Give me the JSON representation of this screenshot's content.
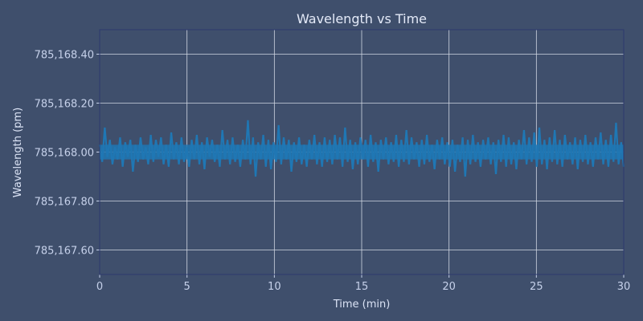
{
  "chart_data": {
    "type": "line",
    "title": "Wavelength vs Time",
    "xlabel": "Time (min)",
    "ylabel": "Wavelength (pm)",
    "xlim": [
      0,
      30
    ],
    "ylim": [
      785167.5,
      785168.5
    ],
    "xticks": [
      0,
      5,
      10,
      15,
      20,
      25,
      30
    ],
    "xtick_labels": [
      "0",
      "5",
      "10",
      "15",
      "20",
      "25",
      "30"
    ],
    "yticks": [
      785167.6,
      785167.8,
      785168.0,
      785168.2,
      785168.4
    ],
    "ytick_labels": [
      "785,167.60",
      "785,167.80",
      "785,168.00",
      "785,168.20",
      "785,168.40"
    ],
    "grid": true,
    "series": [
      {
        "name": "Wavelength",
        "color": "#1f77b4",
        "y_base": 785168.0,
        "y_deviation_from_base": [
          0.03,
          -0.04,
          0.1,
          -0.02,
          0.05,
          -0.05,
          0.02,
          -0.03,
          0.06,
          -0.06,
          0.04,
          -0.02,
          0.05,
          -0.08,
          0.03,
          -0.04,
          0.06,
          -0.03,
          0.02,
          -0.05,
          0.07,
          -0.04,
          0.05,
          -0.02,
          0.06,
          -0.05,
          0.03,
          -0.06,
          0.08,
          -0.03,
          0.04,
          -0.05,
          0.06,
          -0.04,
          0.02,
          -0.06,
          0.05,
          -0.03,
          0.07,
          -0.05,
          0.04,
          -0.07,
          0.06,
          -0.02,
          0.05,
          -0.04,
          0.03,
          -0.06,
          0.09,
          -0.03,
          0.05,
          -0.05,
          0.06,
          -0.04,
          0.03,
          -0.06,
          0.05,
          -0.03,
          0.13,
          -0.05,
          0.06,
          -0.1,
          0.04,
          -0.03,
          0.07,
          -0.06,
          0.05,
          -0.07,
          0.04,
          -0.04,
          0.11,
          -0.05,
          0.06,
          -0.03,
          0.05,
          -0.08,
          0.04,
          -0.04,
          0.06,
          -0.05,
          0.03,
          -0.06,
          0.05,
          -0.03,
          0.07,
          -0.05,
          0.04,
          -0.06,
          0.06,
          -0.04,
          0.05,
          -0.05,
          0.07,
          -0.03,
          0.06,
          -0.06,
          0.1,
          -0.04,
          0.05,
          -0.07,
          0.04,
          -0.05,
          0.06,
          -0.03,
          0.05,
          -0.06,
          0.07,
          -0.04,
          0.04,
          -0.08,
          0.05,
          -0.03,
          0.06,
          -0.05,
          0.04,
          -0.04,
          0.07,
          -0.06,
          0.05,
          -0.04,
          0.09,
          -0.05,
          0.06,
          -0.03,
          0.04,
          -0.06,
          0.05,
          -0.05,
          0.07,
          -0.04,
          0.03,
          -0.07,
          0.05,
          -0.03,
          0.06,
          -0.05,
          0.04,
          -0.06,
          0.05,
          -0.08,
          0.03,
          -0.04,
          0.06,
          -0.1,
          0.05,
          -0.05,
          0.07,
          -0.04,
          0.04,
          -0.06,
          0.05,
          -0.03,
          0.06,
          -0.05,
          0.04,
          -0.09,
          0.05,
          -0.04,
          0.07,
          -0.06,
          0.06,
          -0.05,
          0.04,
          -0.07,
          0.05,
          -0.03,
          0.09,
          -0.05,
          0.06,
          -0.04,
          0.08,
          -0.06,
          0.1,
          -0.05,
          0.05,
          -0.07,
          0.06,
          -0.04,
          0.09,
          -0.05,
          0.05,
          -0.06,
          0.07,
          -0.03,
          0.04,
          -0.05,
          0.06,
          -0.07,
          0.05,
          -0.04,
          0.07,
          -0.05,
          0.04,
          -0.06,
          0.06,
          -0.03,
          0.08,
          -0.05,
          0.05,
          -0.06,
          0.07,
          -0.04,
          0.12,
          -0.05,
          0.04,
          -0.06
        ]
      }
    ]
  }
}
